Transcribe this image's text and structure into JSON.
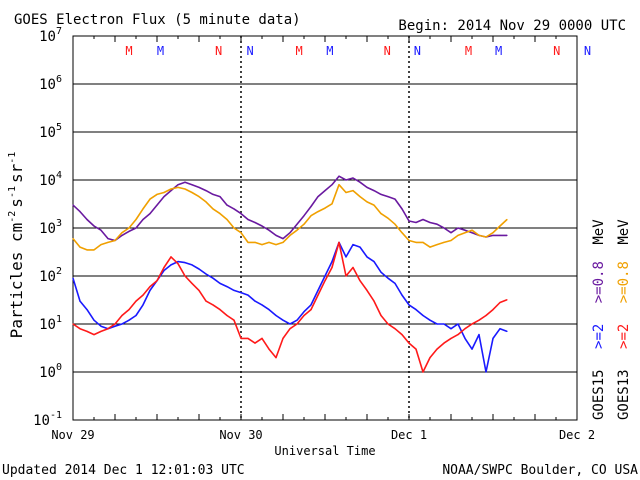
{
  "header": {
    "title": "GOES Electron Flux (5 minute data)",
    "begin": "Begin: 2014 Nov 29 0000 UTC"
  },
  "footer": {
    "updated": "Updated 2014 Dec  1 12:01:03 UTC",
    "credit": "NOAA/SWPC Boulder, CO USA"
  },
  "colors": {
    "goes15_ge2": "#1a1aff",
    "goes15_ge08": "#6a1aa0",
    "goes13_ge2": "#ff1a1a",
    "goes13_ge08": "#f0a000",
    "frame": "#000000"
  },
  "chart_data": {
    "type": "line",
    "title": "GOES Electron Flux (5 minute data)",
    "xlabel": "Universal Time",
    "ylabel": "Particles cm^-2 s^-1 sr^-1",
    "ylabel_parts": [
      "Particles cm",
      "-2",
      "s",
      "-1",
      "sr",
      "-1"
    ],
    "yscale": "log",
    "ylim": [
      0.1,
      10000000
    ],
    "yticks": [
      {
        "value": 10000000,
        "base": "10",
        "exp": "7"
      },
      {
        "value": 1000000,
        "base": "10",
        "exp": "6"
      },
      {
        "value": 100000,
        "base": "10",
        "exp": "5"
      },
      {
        "value": 10000,
        "base": "10",
        "exp": "4"
      },
      {
        "value": 1000,
        "base": "10",
        "exp": "3"
      },
      {
        "value": 100,
        "base": "10",
        "exp": "2"
      },
      {
        "value": 10,
        "base": "10",
        "exp": "1"
      },
      {
        "value": 1,
        "base": "10",
        "exp": "0"
      },
      {
        "value": 0.1,
        "base": "10",
        "exp": "-1"
      }
    ],
    "xlim": [
      0,
      72
    ],
    "x_unit": "hours since 2014 Nov 29 00:00 UTC",
    "xticks": [
      {
        "value": 0,
        "label": "Nov 29"
      },
      {
        "value": 24,
        "label": "Nov 30"
      },
      {
        "value": 48,
        "label": "Dec 1"
      },
      {
        "value": 72,
        "label": "Dec 2"
      }
    ],
    "day_boundaries": [
      24,
      48
    ],
    "threshold_line": {
      "value": 1000,
      "style": "dashed"
    },
    "grid": true,
    "markers": [
      {
        "x": 8,
        "label": "M",
        "color": "#ff1a1a"
      },
      {
        "x": 12.5,
        "label": "M",
        "color": "#1a1aff"
      },
      {
        "x": 20.8,
        "label": "N",
        "color": "#ff1a1a"
      },
      {
        "x": 25.3,
        "label": "N",
        "color": "#1a1aff"
      },
      {
        "x": 32.3,
        "label": "M",
        "color": "#ff1a1a"
      },
      {
        "x": 36.7,
        "label": "M",
        "color": "#1a1aff"
      },
      {
        "x": 44.9,
        "label": "N",
        "color": "#ff1a1a"
      },
      {
        "x": 49.2,
        "label": "N",
        "color": "#1a1aff"
      },
      {
        "x": 56.5,
        "label": "M",
        "color": "#ff1a1a"
      },
      {
        "x": 60.8,
        "label": "M",
        "color": "#1a1aff"
      },
      {
        "x": 69.1,
        "label": "N",
        "color": "#ff1a1a"
      },
      {
        "x": 73.5,
        "label": "N",
        "color": "#1a1aff"
      }
    ],
    "legend": {
      "placement": "right",
      "entries": [
        {
          "text": "GOES15",
          "color": "#000000"
        },
        {
          "text": ">=2",
          "color": "#1a1aff"
        },
        {
          "text": ">=0.8",
          "color": "#6a1aa0"
        },
        {
          "text": "MeV",
          "color": "#000000"
        },
        {
          "text": "GOES13",
          "color": "#000000"
        },
        {
          "text": ">=2",
          "color": "#ff1a1a"
        },
        {
          "text": ">=0.8",
          "color": "#f0a000"
        },
        {
          "text": "MeV",
          "color": "#000000"
        }
      ]
    },
    "series": [
      {
        "id": "goes15_ge08",
        "color": "#6a1aa0",
        "x": [
          0,
          1,
          2,
          3,
          4,
          5,
          6,
          7,
          8,
          9,
          10,
          11,
          12,
          13,
          14,
          15,
          16,
          17,
          18,
          19,
          20,
          21,
          22,
          23,
          24,
          25,
          26,
          27,
          28,
          29,
          30,
          31,
          32,
          33,
          34,
          35,
          36,
          37,
          38,
          39,
          40,
          41,
          42,
          43,
          44,
          45,
          46,
          47,
          48,
          49,
          50,
          51,
          52,
          53,
          54,
          55,
          56,
          57,
          58,
          59,
          60,
          61,
          62
        ],
        "y": [
          3000,
          2200,
          1500,
          1100,
          900,
          600,
          550,
          700,
          850,
          1000,
          1500,
          2000,
          3000,
          4500,
          6000,
          8000,
          9000,
          8000,
          7000,
          6000,
          5000,
          4500,
          3000,
          2500,
          2000,
          1500,
          1300,
          1100,
          900,
          700,
          600,
          800,
          1200,
          1800,
          2800,
          4500,
          6000,
          8000,
          12000,
          10000,
          11000,
          9000,
          7000,
          6000,
          5000,
          4500,
          4000,
          2500,
          1400,
          1300,
          1500,
          1300,
          1200,
          1000,
          800,
          1000,
          900,
          800,
          700,
          650,
          700,
          700,
          700
        ]
      },
      {
        "id": "goes13_ge08",
        "color": "#f0a000",
        "x": [
          0,
          1,
          2,
          3,
          4,
          5,
          6,
          7,
          8,
          9,
          10,
          11,
          12,
          13,
          14,
          15,
          16,
          17,
          18,
          19,
          20,
          21,
          22,
          23,
          24,
          25,
          26,
          27,
          28,
          29,
          30,
          31,
          32,
          33,
          34,
          35,
          36,
          37,
          38,
          39,
          40,
          41,
          42,
          43,
          44,
          45,
          46,
          47,
          48,
          49,
          50,
          51,
          52,
          53,
          54,
          55,
          56,
          57,
          58,
          59,
          60,
          61,
          62
        ],
        "y": [
          600,
          400,
          350,
          350,
          450,
          500,
          550,
          800,
          1000,
          1500,
          2500,
          4000,
          5000,
          5500,
          6500,
          7000,
          6500,
          5500,
          4500,
          3500,
          2500,
          2000,
          1500,
          1000,
          800,
          500,
          500,
          450,
          500,
          450,
          500,
          700,
          900,
          1200,
          1800,
          2200,
          2600,
          3200,
          8000,
          5500,
          6000,
          4500,
          3500,
          3000,
          2000,
          1600,
          1200,
          800,
          550,
          500,
          500,
          400,
          450,
          500,
          550,
          700,
          800,
          900,
          700,
          650,
          800,
          1100,
          1500
        ]
      },
      {
        "id": "goes15_ge2",
        "color": "#1a1aff",
        "x": [
          0,
          1,
          2,
          3,
          4,
          5,
          6,
          7,
          8,
          9,
          10,
          11,
          12,
          13,
          14,
          15,
          16,
          17,
          18,
          19,
          20,
          21,
          22,
          23,
          24,
          25,
          26,
          27,
          28,
          29,
          30,
          31,
          32,
          33,
          34,
          35,
          36,
          37,
          38,
          39,
          40,
          41,
          42,
          43,
          44,
          45,
          46,
          47,
          48,
          49,
          50,
          51,
          52,
          53,
          54,
          55,
          56,
          57,
          58,
          59,
          60,
          61,
          62
        ],
        "y": [
          90,
          30,
          20,
          12,
          9,
          8,
          9,
          10,
          12,
          15,
          25,
          50,
          80,
          130,
          170,
          200,
          190,
          170,
          140,
          110,
          90,
          70,
          60,
          50,
          45,
          40,
          30,
          25,
          20,
          15,
          12,
          10,
          12,
          18,
          25,
          50,
          100,
          200,
          500,
          250,
          450,
          400,
          250,
          200,
          120,
          90,
          70,
          40,
          25,
          20,
          15,
          12,
          10,
          10,
          8,
          10,
          5,
          3,
          6,
          1,
          5,
          8,
          7
        ]
      },
      {
        "id": "goes13_ge2",
        "color": "#ff1a1a",
        "x": [
          0,
          1,
          2,
          3,
          4,
          5,
          6,
          7,
          8,
          9,
          10,
          11,
          12,
          13,
          14,
          15,
          16,
          17,
          18,
          19,
          20,
          21,
          22,
          23,
          24,
          25,
          26,
          27,
          28,
          29,
          30,
          31,
          32,
          33,
          34,
          35,
          36,
          37,
          38,
          39,
          40,
          41,
          42,
          43,
          44,
          45,
          46,
          47,
          48,
          49,
          50,
          51,
          52,
          53,
          54,
          55,
          56,
          57,
          58,
          59,
          60,
          61,
          62
        ],
        "y": [
          10,
          8,
          7,
          6,
          7,
          8,
          10,
          15,
          20,
          30,
          40,
          60,
          80,
          150,
          250,
          180,
          100,
          70,
          50,
          30,
          25,
          20,
          15,
          12,
          5,
          5,
          4,
          5,
          3,
          2,
          5,
          8,
          10,
          15,
          20,
          40,
          80,
          150,
          500,
          100,
          150,
          80,
          50,
          30,
          15,
          10,
          8,
          6,
          4,
          3,
          1,
          2,
          3,
          4,
          5,
          6,
          8,
          10,
          12,
          15,
          20,
          28,
          32
        ]
      }
    ]
  }
}
